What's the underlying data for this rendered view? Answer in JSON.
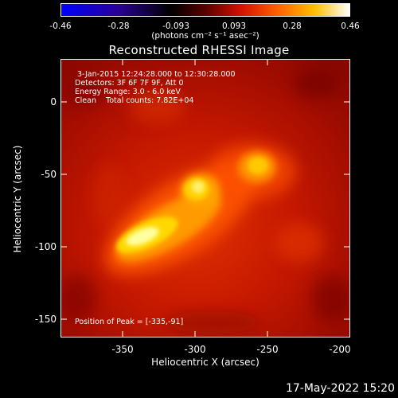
{
  "colorbar": {
    "ticks": [
      "-0.46",
      "-0.28",
      "-0.093",
      "0.093",
      "0.28",
      "0.46"
    ],
    "units": "(photons cm⁻² s⁻¹ asec⁻²)",
    "colors": [
      "#0000ff",
      "#2d0090",
      "#000000",
      "#7a0000",
      "#ff2000",
      "#ff9a00",
      "#ffff60",
      "#ffffff"
    ]
  },
  "title": "Reconstructed RHESSI Image",
  "info": {
    "time_range": "3-Jan-2015 12:24:28.000 to 12:30:28.000",
    "detectors": "Detectors: 3F 6F 7F 9F, Att 0",
    "energy": "Energy Range: 3.0 - 6.0 keV",
    "clean": "Clean    Total counts: 7.82E+04",
    "peak": "Position of Peak = [-335,-91]"
  },
  "axes": {
    "xlabel": "Heliocentric X (arcsec)",
    "ylabel": "Heliocentric Y (arcsec)",
    "xticks": [
      "-350",
      "-300",
      "-250",
      "-200"
    ],
    "yticks": [
      "0",
      "-50",
      "-100",
      "-150"
    ]
  },
  "datestamp": "17-May-2022 15:20"
}
